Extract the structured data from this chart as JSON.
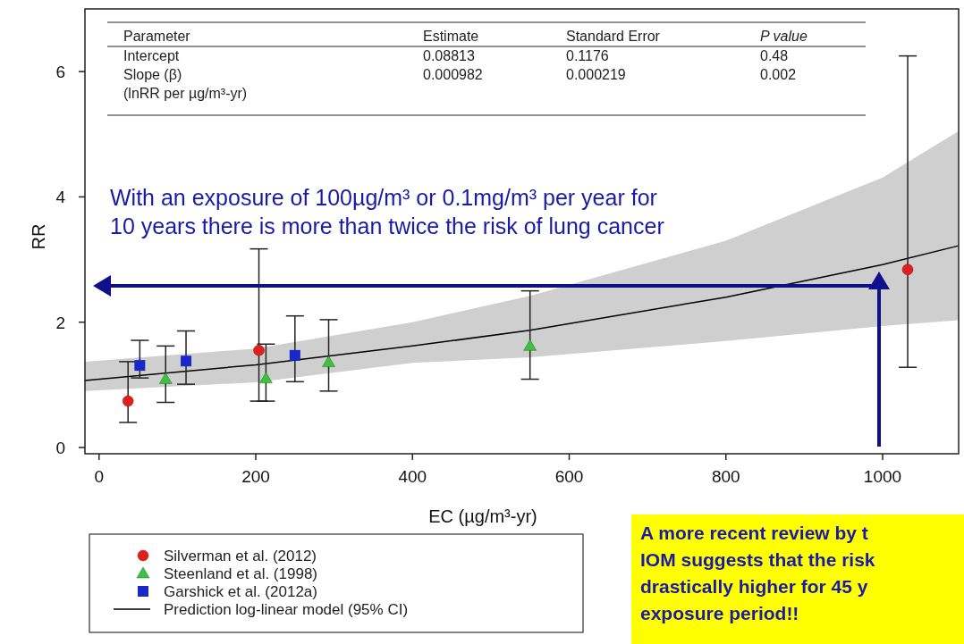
{
  "chart_data": {
    "type": "scatter",
    "xlabel": "EC (µg/m³-yr)",
    "ylabel": "RR",
    "xlim": [
      -18,
      1097
    ],
    "ylim": [
      -0.1,
      7.0
    ],
    "xticks": [
      0,
      200,
      400,
      600,
      800,
      1000
    ],
    "yticks": [
      0,
      2,
      4,
      6
    ],
    "grid": false,
    "legend": "bottom left",
    "series": [
      {
        "name": "Silverman et al. (2012)",
        "color": "#e02020",
        "marker": "circle",
        "x": [
          37,
          204,
          1032
        ],
        "values": [
          0.74,
          1.55,
          2.84
        ],
        "errors": [
          [
            0.4,
            1.37
          ],
          [
            0.74,
            3.17
          ],
          [
            1.28,
            6.25
          ]
        ]
      },
      {
        "name": "Steenland et al. (1998)",
        "color": "#40c040",
        "marker": "triangle",
        "x": [
          85,
          213,
          293,
          550
        ],
        "values": [
          1.09,
          1.1,
          1.36,
          1.62
        ],
        "errors": [
          [
            0.72,
            1.62
          ],
          [
            0.74,
            1.65
          ],
          [
            0.9,
            2.04
          ],
          [
            1.09,
            2.5
          ]
        ]
      },
      {
        "name": "Garshick et al. (2012a)",
        "color": "#1a28c8",
        "marker": "square",
        "x": [
          52,
          111,
          250
        ],
        "values": [
          1.31,
          1.38,
          1.47
        ],
        "errors": [
          [
            1.11,
            1.71
          ],
          [
            1.01,
            1.86
          ],
          [
            1.05,
            2.1
          ]
        ]
      },
      {
        "name": "Prediction log-linear model (95% CI)",
        "type": "line",
        "color": "#000000",
        "marker": "none",
        "x": [
          -18,
          200,
          400,
          550,
          800,
          1000,
          1097
        ],
        "values": [
          1.07,
          1.32,
          1.62,
          1.87,
          2.4,
          2.92,
          3.22
        ],
        "lower": [
          0.9,
          1.04,
          1.35,
          1.44,
          1.7,
          1.94,
          2.03
        ],
        "upper": [
          1.37,
          1.58,
          2.0,
          2.42,
          3.3,
          4.31,
          5.05
        ]
      }
    ],
    "annotations": [
      "Parameter",
      "Estimate",
      "Standard Error",
      "P value",
      "Intercept",
      "0.08813",
      "0.1176",
      "0.48",
      "Slope (β)",
      "0.000982",
      "0.000219",
      "0.002",
      "(lnRR per µg/m³-yr)",
      "With an exposure of 100µg/m³ or 0.1mg/m³ per year for\n10 years there is more than twice the risk of lung cancer",
      "A more recent review by t\nIOM suggests that the risk\ndrastically higher for 45 y\nexposure period!!"
    ]
  }
}
